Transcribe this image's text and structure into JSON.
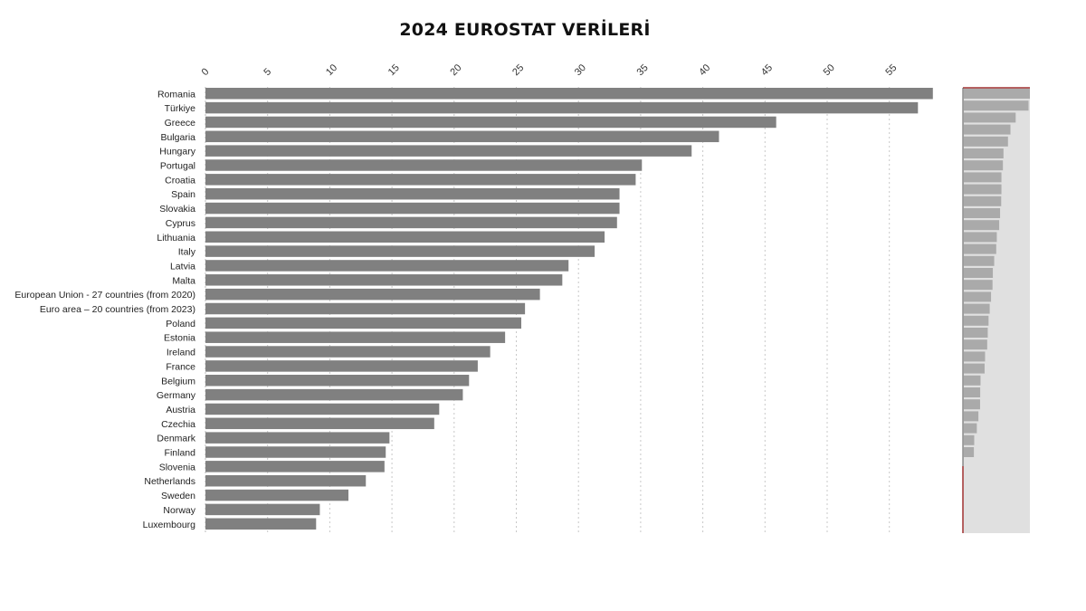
{
  "chart_data": {
    "type": "bar",
    "orientation": "horizontal",
    "title": "2024 EUROSTAT VERİLERİ",
    "xlabel": "",
    "ylabel": "",
    "xlim": [
      0,
      59
    ],
    "x_ticks": [
      0,
      5,
      10,
      15,
      20,
      25,
      30,
      35,
      40,
      45,
      50,
      55
    ],
    "grid": true,
    "legend": "none",
    "bar_color": "#808080",
    "categories": [
      "Romania",
      "Türkiye",
      "Greece",
      "Bulgaria",
      "Hungary",
      "Portugal",
      "Croatia",
      "Spain",
      "Slovakia",
      "Cyprus",
      "Lithuania",
      "Italy",
      "Latvia",
      "Malta",
      "European Union - 27 countries (from 2020)",
      "Euro area – 20 countries (from 2023)",
      "Poland",
      "Estonia",
      "Ireland",
      "France",
      "Belgium",
      "Germany",
      "Austria",
      "Czechia",
      "Denmark",
      "Finland",
      "Slovenia",
      "Netherlands",
      "Sweden",
      "Norway",
      "Luxembourg"
    ],
    "values": [
      58.5,
      57.3,
      45.9,
      41.3,
      39.1,
      35.1,
      34.6,
      33.3,
      33.3,
      33.1,
      32.1,
      31.3,
      29.2,
      28.7,
      26.9,
      25.7,
      25.4,
      24.1,
      22.9,
      21.9,
      21.2,
      20.7,
      18.8,
      18.4,
      14.8,
      14.5,
      14.4,
      12.9,
      11.5,
      9.2,
      8.9
    ],
    "overview_panel": {
      "background": "#e0e0e0",
      "bar_color": "#aaaaaa",
      "marker_color": "#a03030"
    }
  }
}
